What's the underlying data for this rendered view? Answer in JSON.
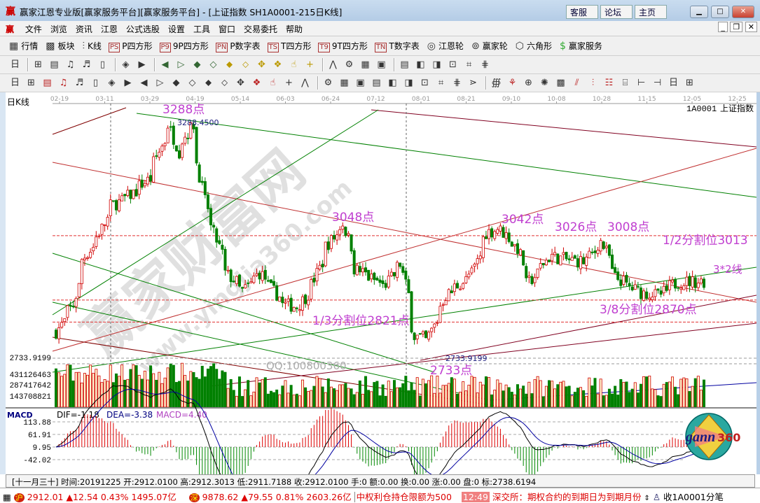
{
  "window": {
    "title": "赢家江恩专业版[赢家服务平台][赢家服务平台] - [上证指数  SH1A0001-215日K线]",
    "logo": "赢",
    "web_buttons": [
      "客服",
      "论坛",
      "主页"
    ]
  },
  "menu": [
    "文件",
    "浏览",
    "资讯",
    "江恩",
    "公式选股",
    "设置",
    "工具",
    "窗口",
    "交易委托",
    "帮助"
  ],
  "toolbar1": [
    {
      "label": "行情",
      "icon": "quote-table-icon",
      "tag": "▦"
    },
    {
      "label": "板块",
      "icon": "sector-icon",
      "tag": "▩"
    },
    {
      "label": "K线",
      "icon": "kline-icon",
      "tag": "⫶"
    },
    {
      "label": "P四方形",
      "icon": "ps-icon",
      "tag": "PS"
    },
    {
      "label": "9P四方形",
      "icon": "p9-icon",
      "tag": "P9"
    },
    {
      "label": "P数字表",
      "icon": "pn-icon",
      "tag": "PN"
    },
    {
      "label": "T四方形",
      "icon": "ts-icon",
      "tag": "TS"
    },
    {
      "label": "9T四方形",
      "icon": "t9-icon",
      "tag": "T9"
    },
    {
      "label": "T数字表",
      "icon": "tn-icon",
      "tag": "TN"
    },
    {
      "label": "江恩轮",
      "icon": "gann-wheel-icon",
      "tag": "◎"
    },
    {
      "label": "赢家轮",
      "icon": "winner-wheel-icon",
      "tag": "⊚"
    },
    {
      "label": "六角形",
      "icon": "hexagon-icon",
      "tag": "⬡"
    },
    {
      "label": "赢家服务",
      "icon": "dollar-icon",
      "tag": "$"
    }
  ],
  "toolbar2": [
    "calendar-period-icon",
    "|",
    "zoom-icon",
    "notes-icon",
    "chart-3-icon",
    "chart-9-icon",
    "candle-icon",
    "|",
    "draw-icon",
    "flag-icon",
    "|",
    "first-icon",
    "last-icon",
    "prev-icon",
    "next-icon",
    "arrow-left-diamond-icon",
    "arrow-right-diamond-icon",
    "expand-h-icon",
    "shrink-h-icon",
    "expand-all-icon",
    "expand-v-icon",
    "|",
    "hand-icon",
    "crosshair-icon",
    "line-chart-icon",
    "gear-chart-icon",
    "|",
    "calendar-icon",
    "grid-icon",
    "save-icon",
    "print-icon",
    "window-icon",
    "export-icon"
  ],
  "toolbar3": [
    "pen-icon",
    "grid-lines-icon",
    "gold-lines-icon",
    "gold-lines2-icon",
    "fib-lines-icon",
    "spiral-icon",
    "pen-ruler-icon",
    "circle-ruler-icon",
    "parallel-lines-icon",
    "n2-lines-icon",
    "triangle-icon",
    "target-icon",
    "star-icon",
    "square-grid-icon",
    "ray-icon",
    "god-lines-icon",
    "hui-lines-icon",
    "number-grid-icon",
    "width-icon",
    "|",
    "box-icon",
    "fan-icon",
    "square-fan-icon",
    "fan2-icon",
    "cross-fan-icon",
    "line-up-icon",
    "line-dn-icon",
    "curve-icon",
    "channel-icon",
    "arc-icon",
    "|",
    "table-icon",
    "flag-red-icon",
    "percent-icon",
    "zero-icon",
    "coin-icon",
    "pen-red-icon",
    "gold-bar-icon",
    "gold-bar2-icon",
    "ruler-icon",
    "ruler2-icon",
    "hang-icon",
    "sand-icon",
    "label-icon"
  ],
  "chart": {
    "period_label": "日K线",
    "symbol": "1A0001",
    "symbol_name": "上证指数",
    "date_ticks": [
      "02-19",
      "03-11",
      "03-29",
      "04-19",
      "05-14",
      "06-03",
      "06-24",
      "07-12",
      "08-01",
      "08-21",
      "09-10",
      "10-08",
      "10-28",
      "11-15",
      "12-05",
      "12-25"
    ],
    "price_path": [
      [
        "2019-02-12",
        2800
      ],
      [
        "2019-02-20",
        2860
      ],
      [
        "2019-02-25",
        2960
      ],
      [
        "2019-03-04",
        3010
      ],
      [
        "2019-03-11",
        3080
      ],
      [
        "2019-03-19",
        3100
      ],
      [
        "2019-03-29",
        3140
      ],
      [
        "2019-04-08",
        3260
      ],
      [
        "2019-04-12",
        3200
      ],
      [
        "2019-04-19",
        3260
      ],
      [
        "2019-04-25",
        3090
      ],
      [
        "2019-05-06",
        2930
      ],
      [
        "2019-05-14",
        2890
      ],
      [
        "2019-05-22",
        2930
      ],
      [
        "2019-06-03",
        2860
      ],
      [
        "2019-06-10",
        2855
      ],
      [
        "2019-06-17",
        2905
      ],
      [
        "2019-06-24",
        2990
      ],
      [
        "2019-07-02",
        3040
      ],
      [
        "2019-07-08",
        2940
      ],
      [
        "2019-07-15",
        2920
      ],
      [
        "2019-07-22",
        2900
      ],
      [
        "2019-07-30",
        2950
      ],
      [
        "2019-08-06",
        2790
      ],
      [
        "2019-08-12",
        2780
      ],
      [
        "2019-08-21",
        2880
      ],
      [
        "2019-09-03",
        2930
      ],
      [
        "2019-09-10",
        3020
      ],
      [
        "2019-09-16",
        3030
      ],
      [
        "2019-09-25",
        2985
      ],
      [
        "2019-09-30",
        2905
      ],
      [
        "2019-10-11",
        2970
      ],
      [
        "2019-10-18",
        2960
      ],
      [
        "2019-10-28",
        2955
      ],
      [
        "2019-11-05",
        3000
      ],
      [
        "2019-11-12",
        2920
      ],
      [
        "2019-11-22",
        2890
      ],
      [
        "2019-12-03",
        2880
      ],
      [
        "2019-12-12",
        2910
      ],
      [
        "2019-12-25",
        2912
      ]
    ],
    "price_axis": {
      "max": 3288,
      "min": 2733
    },
    "left_labels": {
      "low_price": "2733.9199",
      "vol1": "431126463",
      "vol2": "287417642",
      "vol3": "143708821"
    },
    "annotations": {
      "high": "3288点",
      "high_value": "3288.4500",
      "p3048": "3048点",
      "p3042": "3042点",
      "p3026": "3026点",
      "p3008": "3008点",
      "half": "1/2分割位3013",
      "line32": "3*2线",
      "third": "1/3分割位2821点",
      "three_eighths": "3/8分割位2870点",
      "low": "2733点",
      "low_value": "2733.9199"
    },
    "levels": [
      3013,
      2870,
      2821
    ],
    "watermark": {
      "text": "赢家财富网",
      "url": "www.yingjia360.com",
      "qq": "QQ:100800360"
    },
    "macd": {
      "name": "MACD",
      "dif": "DIF=-1.18",
      "dea": "DEA=-3.38",
      "macd": "MACD=4.40",
      "ticks": [
        "113.88",
        "61.91",
        "9.95",
        "-42.02"
      ]
    },
    "gann_logo": "gann360",
    "colors": {
      "up": "#d00000",
      "down": "#008000",
      "level": "#e03030",
      "annotation": "#c040d0"
    }
  },
  "info_bar": "[十一月三十] 时间:20191225 开:2912.0100 高:2912.3013 低:2911.7188 收:2912.0100 手:0 额:0.00 换:0.00 涨:0.00 盘:0 标:2738.6194",
  "status": {
    "sh_badge": "沪",
    "sh": "2912.01 ▲12.54 0.43% 1495.07亿",
    "sz_badge": "深",
    "sz": "9878.62 ▲79.55 0.81% 2603.26亿",
    "ticker1": "中权利仓持仓限额为500",
    "time": "12:49",
    "ticker2": "深交所：期权合约的到期日为到期月份",
    "right": "收1A0001分笔"
  }
}
